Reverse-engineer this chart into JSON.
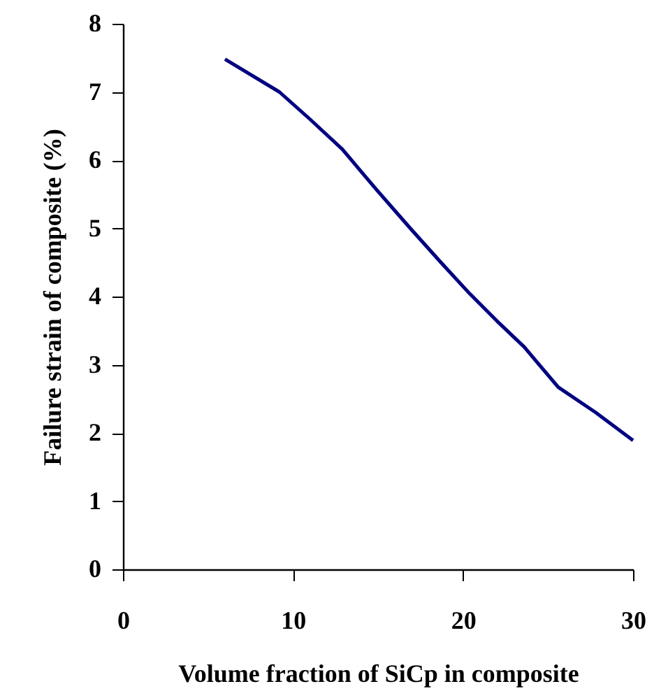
{
  "chart_data": {
    "type": "line",
    "xlabel": "Volume fraction of SiCp in composite",
    "ylabel": "Failure strain of composite (%)",
    "x": [
      6,
      9.2,
      11,
      12.9,
      14.9,
      16.9,
      18.7,
      20.4,
      22,
      23.6,
      25.6,
      27.8,
      30
    ],
    "series": [
      {
        "color": "#000080",
        "values": [
          7.48,
          7.0,
          6.6,
          6.16,
          5.57,
          5.0,
          4.5,
          4.04,
          3.64,
          3.26,
          2.67,
          2.3,
          1.89
        ]
      }
    ],
    "xlim": [
      0,
      30
    ],
    "xticks": [
      0,
      10,
      20,
      30
    ],
    "ylim": [
      0,
      8
    ],
    "yticks": [
      0,
      1,
      2,
      3,
      4,
      5,
      6,
      7,
      8
    ],
    "grid": false,
    "marker": "none",
    "line_style": "solid"
  }
}
